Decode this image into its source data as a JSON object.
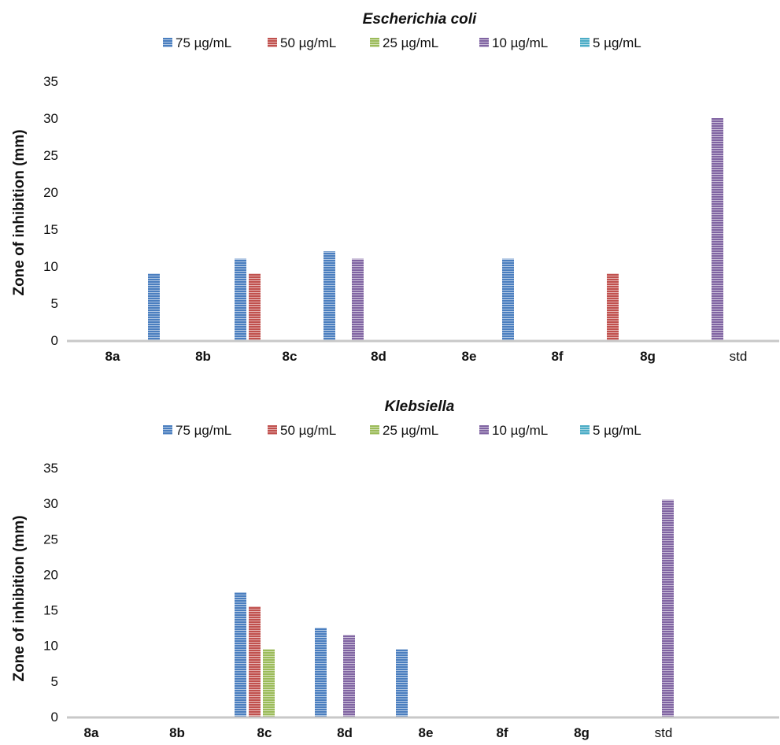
{
  "chart_data": [
    {
      "type": "bar",
      "title": "Escherichia coli",
      "ylabel": "Zone of inhibition (mm)",
      "xlabel": "",
      "ylim": [
        0,
        35
      ],
      "yticks": [
        "0",
        "5",
        "10",
        "15",
        "20",
        "25",
        "30",
        "35"
      ],
      "categories": [
        "8a",
        "8b",
        "8c",
        "8d",
        "8e",
        "8f",
        "8g",
        "std"
      ],
      "legend_position": "top",
      "series": [
        {
          "name": "75 µg/mL",
          "color": "#4a7ebf",
          "values": [
            0,
            9,
            11,
            12,
            0,
            11,
            0,
            0
          ]
        },
        {
          "name": "50 µg/mL",
          "color": "#c0504d",
          "values": [
            0,
            0,
            9,
            0,
            0,
            0,
            9,
            0
          ]
        },
        {
          "name": "25 µg/mL",
          "color": "#9bbb59",
          "values": [
            0,
            0,
            0,
            0,
            0,
            0,
            0,
            0
          ]
        },
        {
          "name": "10 µg/mL",
          "color": "#8064a2",
          "values": [
            0,
            0,
            0,
            11,
            0,
            0,
            0,
            30
          ]
        },
        {
          "name": "5 µg/mL",
          "color": "#4bacc6",
          "values": [
            0,
            0,
            0,
            0,
            0,
            0,
            0,
            0
          ]
        }
      ]
    },
    {
      "type": "bar",
      "title": "Klebsiella",
      "ylabel": "Zone of inhibition (mm)",
      "xlabel": "",
      "ylim": [
        0,
        35
      ],
      "yticks": [
        "0",
        "5",
        "10",
        "15",
        "20",
        "25",
        "30",
        "35"
      ],
      "categories": [
        "8a",
        "8b",
        "8c",
        "8d",
        "8e",
        "8f",
        "8g",
        "std"
      ],
      "legend_position": "top",
      "series": [
        {
          "name": "75 µg/mL",
          "color": "#4a7ebf",
          "values": [
            0,
            0,
            17.5,
            12.5,
            9.5,
            0,
            0,
            0
          ]
        },
        {
          "name": "50 µg/mL",
          "color": "#c0504d",
          "values": [
            0,
            0,
            15.5,
            0,
            0,
            0,
            0,
            0
          ]
        },
        {
          "name": "25 µg/mL",
          "color": "#9bbb59",
          "values": [
            0,
            0,
            9.5,
            0,
            0,
            0,
            0,
            0
          ]
        },
        {
          "name": "10 µg/mL",
          "color": "#8064a2",
          "values": [
            0,
            0,
            0,
            11.5,
            0,
            0,
            0,
            30.5
          ]
        },
        {
          "name": "5 µg/mL",
          "color": "#4bacc6",
          "values": [
            0,
            0,
            0,
            0,
            0,
            0,
            0,
            0
          ]
        }
      ]
    }
  ]
}
